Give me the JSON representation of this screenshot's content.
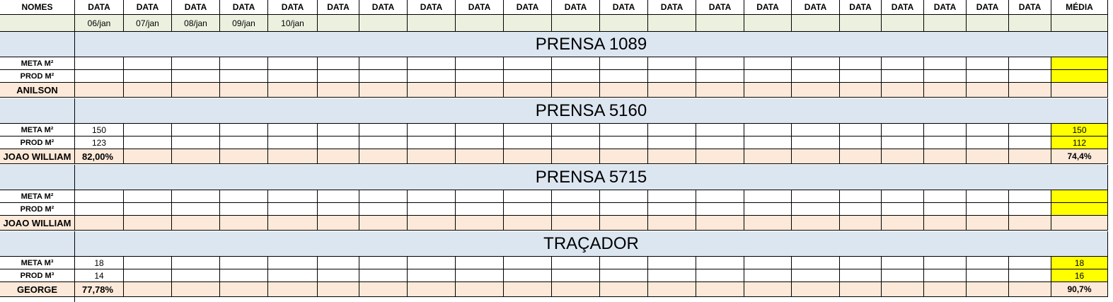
{
  "header": {
    "nomes_label": "NOMES",
    "data_label": "DATA",
    "media_label": "MÉDIA"
  },
  "dates": [
    "06/jan",
    "07/jan",
    "08/jan",
    "09/jan",
    "10/jan"
  ],
  "colors": {
    "date_row_bg": "#ebf1de",
    "section_bg": "#dce6f1",
    "summary_row_bg": "#fde9d9",
    "average_highlight": "#ffff00",
    "grid_line": "#000000"
  },
  "sections": [
    {
      "title": "PRENSA 1089",
      "meta_label": "META M²",
      "prod_label": "PROD M²",
      "operator": "ANILSON",
      "meta_values": [],
      "prod_values": [],
      "efficiency": [],
      "avg_meta": "",
      "avg_prod": "",
      "avg_efficiency": ""
    },
    {
      "title": "PRENSA 5160",
      "meta_label": "META M²",
      "prod_label": "PROD M²",
      "operator": "JOAO WILLIAM",
      "meta_values": [
        "150"
      ],
      "prod_values": [
        "123"
      ],
      "efficiency": [
        "82,00%"
      ],
      "avg_meta": "150",
      "avg_prod": "112",
      "avg_efficiency": "74,4%"
    },
    {
      "title": "PRENSA 5715",
      "meta_label": "META M²",
      "prod_label": "PROD M²",
      "operator": "JOAO WILLIAM",
      "meta_values": [],
      "prod_values": [],
      "efficiency": [],
      "avg_meta": "",
      "avg_prod": "",
      "avg_efficiency": ""
    },
    {
      "title": "TRAÇADOR",
      "meta_label": "META M³",
      "prod_label": "PROD M³",
      "operator": "GEORGE",
      "meta_values": [
        "18"
      ],
      "prod_values": [
        "14"
      ],
      "efficiency": [
        "77,78%"
      ],
      "avg_meta": "18",
      "avg_prod": "16",
      "avg_efficiency": "90,7%"
    }
  ]
}
